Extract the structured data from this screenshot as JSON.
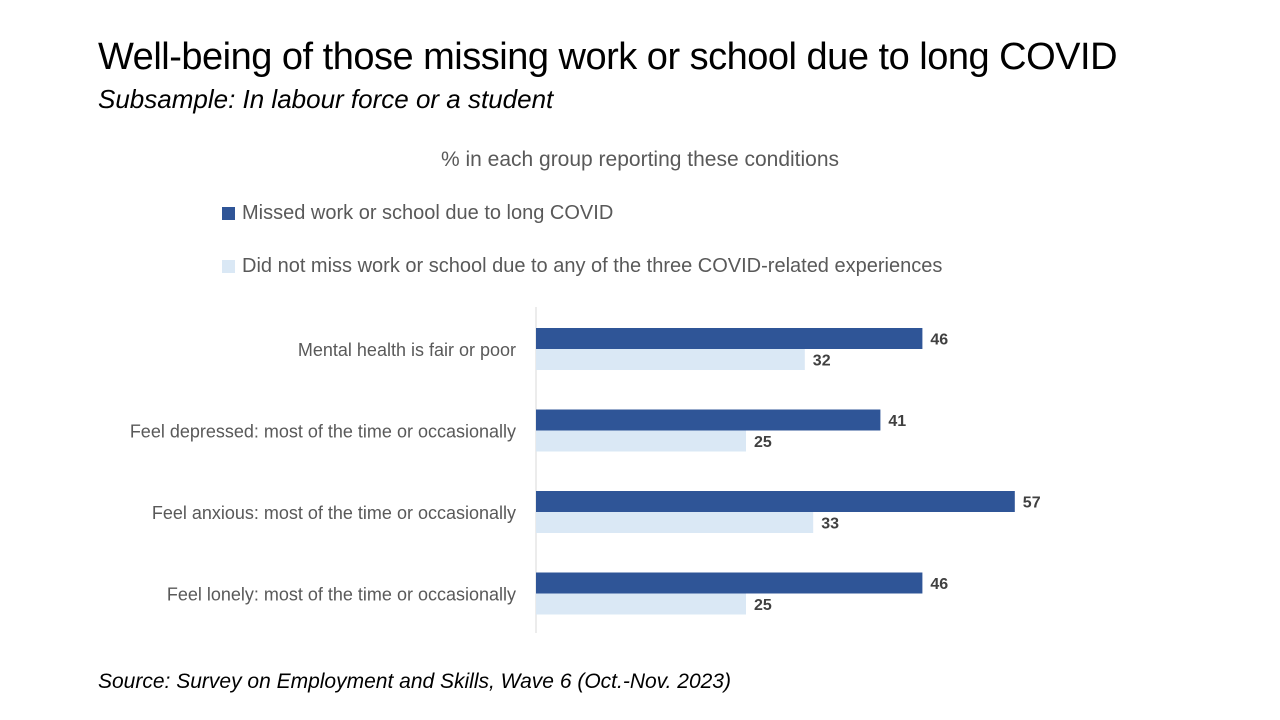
{
  "title": "Well-being of those missing work or school due to long COVID",
  "subtitle": "Subsample: In labour force or a student",
  "source": "Source: Survey on Employment and Skills, Wave 6 (Oct.-Nov. 2023)",
  "chart_data": {
    "type": "bar",
    "orientation": "horizontal",
    "title": "% in each group reporting these conditions",
    "categories": [
      "Mental health is fair or poor",
      "Feel depressed: most of the time or occasionally",
      "Feel anxious: most of the time or occasionally",
      "Feel lonely: most of the time or occasionally"
    ],
    "series": [
      {
        "name": "Missed work or school due to long COVID",
        "color": "#2f5597",
        "values": [
          46,
          41,
          57,
          46
        ]
      },
      {
        "name": "Did not miss work or school due to any of the three COVID-related experiences",
        "color": "#dae8f5",
        "values": [
          32,
          25,
          33,
          25
        ]
      }
    ],
    "xlim": [
      0,
      60
    ],
    "grid": false,
    "legend_position": "top-left",
    "data_labels": true
  }
}
